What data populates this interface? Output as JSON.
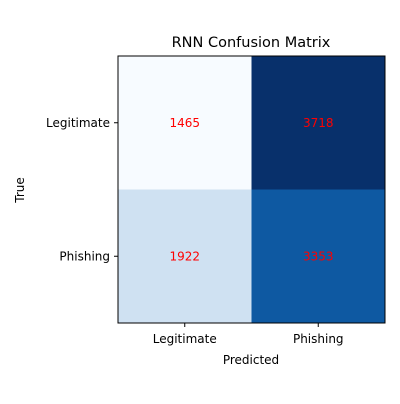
{
  "chart_data": {
    "type": "heatmap",
    "title": "RNN Confusion Matrix",
    "xlabel": "Predicted",
    "ylabel": "True",
    "x_categories": [
      "Legitimate",
      "Phishing"
    ],
    "y_categories": [
      "Legitimate",
      "Phishing"
    ],
    "values": [
      [
        1465,
        3718
      ],
      [
        1922,
        3353
      ]
    ],
    "colormap": "Blues",
    "cell_colors": [
      [
        "#f7fbff",
        "#08306b"
      ],
      [
        "#cfe1f2",
        "#0e59a2"
      ]
    ],
    "annotation_color": "#ff0000",
    "grid": false
  }
}
